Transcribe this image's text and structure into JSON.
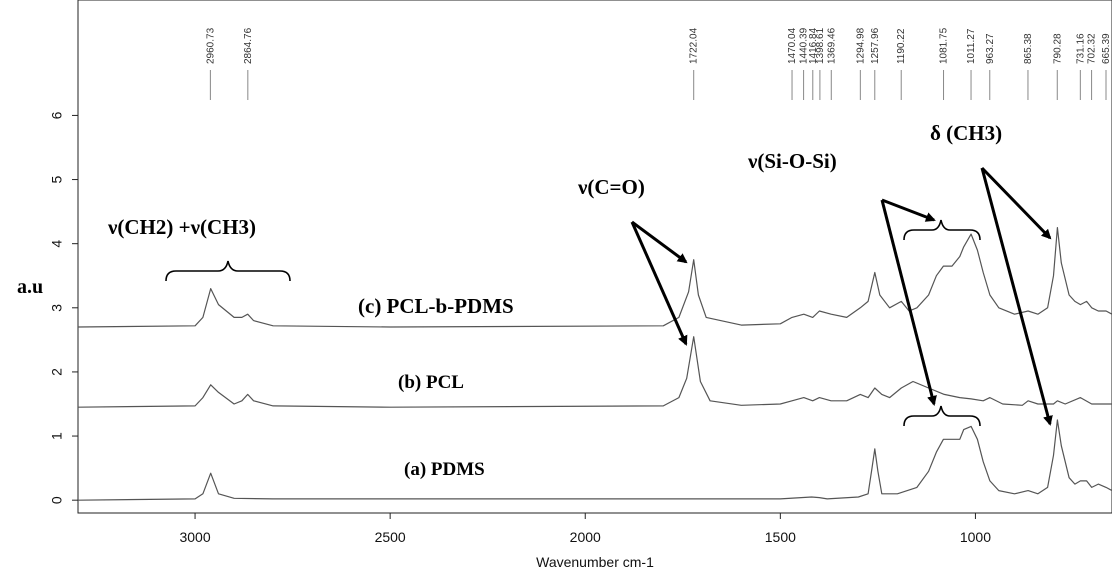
{
  "chart_data": {
    "type": "line",
    "xlabel": "Wavenumber cm-1",
    "ylabel": "a.u",
    "xlim": [
      3300,
      650
    ],
    "ylim": [
      -0.2,
      7.8
    ],
    "x_ticks": [
      3000,
      2500,
      2000,
      1500,
      1000
    ],
    "y_ticks": [
      0,
      1,
      2,
      3,
      4,
      5,
      6
    ],
    "grid": false,
    "peak_labels": [
      "2960.73",
      "2864.76",
      "1722.04",
      "1470.04",
      "1440.39",
      "1416.84",
      "1398.61",
      "1369.46",
      "1294.98",
      "1257.96",
      "1190.22",
      "1081.75",
      "1011.27",
      "963.27",
      "865.38",
      "790.28",
      "731.16",
      "702.32",
      "665.39"
    ],
    "peak_positions": [
      2960.73,
      2864.76,
      1722.04,
      1470.04,
      1440.39,
      1416.84,
      1398.61,
      1369.46,
      1294.98,
      1257.96,
      1190.22,
      1081.75,
      1011.27,
      963.27,
      865.38,
      790.28,
      731.16,
      702.32,
      665.39
    ],
    "series": [
      {
        "name": "(c) PCL-b-PDMS",
        "x": [
          3300,
          3000,
          2980,
          2960,
          2940,
          2900,
          2880,
          2865,
          2850,
          2800,
          2500,
          1800,
          1760,
          1735,
          1722,
          1710,
          1690,
          1600,
          1500,
          1470,
          1440,
          1417,
          1400,
          1370,
          1330,
          1295,
          1275,
          1258,
          1245,
          1220,
          1190,
          1170,
          1150,
          1120,
          1100,
          1082,
          1060,
          1040,
          1030,
          1011,
          995,
          980,
          963,
          940,
          900,
          865,
          840,
          815,
          800,
          790,
          780,
          760,
          745,
          731,
          715,
          702,
          685,
          665,
          650
        ],
        "y": [
          2.7,
          2.72,
          2.85,
          3.3,
          3.05,
          2.85,
          2.85,
          2.9,
          2.8,
          2.72,
          2.7,
          2.72,
          2.85,
          3.25,
          3.75,
          3.2,
          2.85,
          2.73,
          2.75,
          2.85,
          2.9,
          2.85,
          2.95,
          2.9,
          2.85,
          3.0,
          3.1,
          3.55,
          3.2,
          3.0,
          3.1,
          2.95,
          3.0,
          3.2,
          3.5,
          3.65,
          3.65,
          3.8,
          3.95,
          4.15,
          3.9,
          3.55,
          3.2,
          3.0,
          2.9,
          2.95,
          2.9,
          3.0,
          3.5,
          4.25,
          3.7,
          3.2,
          3.1,
          3.05,
          3.1,
          3.0,
          2.95,
          2.95,
          2.9
        ]
      },
      {
        "name": "(b) PCL",
        "x": [
          3300,
          3000,
          2980,
          2960,
          2940,
          2900,
          2880,
          2865,
          2850,
          2800,
          2500,
          1800,
          1760,
          1740,
          1722,
          1705,
          1680,
          1600,
          1500,
          1470,
          1440,
          1417,
          1400,
          1370,
          1330,
          1295,
          1275,
          1258,
          1240,
          1220,
          1190,
          1160,
          1120,
          1080,
          1040,
          1011,
          980,
          963,
          930,
          880,
          865,
          840,
          800,
          790,
          770,
          731,
          702,
          665,
          650
        ],
        "y": [
          1.45,
          1.47,
          1.6,
          1.8,
          1.68,
          1.5,
          1.55,
          1.65,
          1.55,
          1.47,
          1.45,
          1.47,
          1.6,
          1.9,
          2.55,
          1.85,
          1.55,
          1.48,
          1.5,
          1.55,
          1.6,
          1.55,
          1.6,
          1.55,
          1.55,
          1.65,
          1.6,
          1.75,
          1.65,
          1.6,
          1.75,
          1.85,
          1.75,
          1.65,
          1.6,
          1.58,
          1.55,
          1.6,
          1.5,
          1.48,
          1.55,
          1.5,
          1.5,
          1.55,
          1.5,
          1.6,
          1.5,
          1.5,
          1.5
        ]
      },
      {
        "name": "(a) PDMS",
        "x": [
          3300,
          3000,
          2980,
          2960,
          2940,
          2900,
          2800,
          2500,
          2000,
          1500,
          1420,
          1400,
          1380,
          1300,
          1275,
          1265,
          1258,
          1250,
          1240,
          1200,
          1150,
          1120,
          1100,
          1082,
          1060,
          1040,
          1030,
          1011,
          995,
          980,
          963,
          940,
          900,
          865,
          840,
          815,
          800,
          790,
          780,
          760,
          745,
          731,
          715,
          702,
          685,
          665,
          650
        ],
        "y": [
          0.0,
          0.02,
          0.1,
          0.42,
          0.1,
          0.03,
          0.02,
          0.02,
          0.02,
          0.02,
          0.05,
          0.04,
          0.02,
          0.05,
          0.1,
          0.5,
          0.8,
          0.45,
          0.1,
          0.1,
          0.2,
          0.45,
          0.75,
          0.95,
          0.95,
          0.95,
          1.1,
          1.15,
          0.95,
          0.6,
          0.3,
          0.15,
          0.1,
          0.15,
          0.1,
          0.2,
          0.7,
          1.25,
          0.85,
          0.35,
          0.25,
          0.3,
          0.3,
          0.2,
          0.25,
          0.2,
          0.15
        ]
      }
    ],
    "annotations": {
      "ch_stretch": "ν(CH2) +ν(CH3)",
      "carbonyl": "ν(C=O)",
      "siloxane": "ν(Si-O-Si)",
      "methyl_bend": "δ (CH3)",
      "label_c": "(c) PCL-b-PDMS",
      "label_b": "(b) PCL",
      "label_a": "(a) PDMS"
    }
  }
}
